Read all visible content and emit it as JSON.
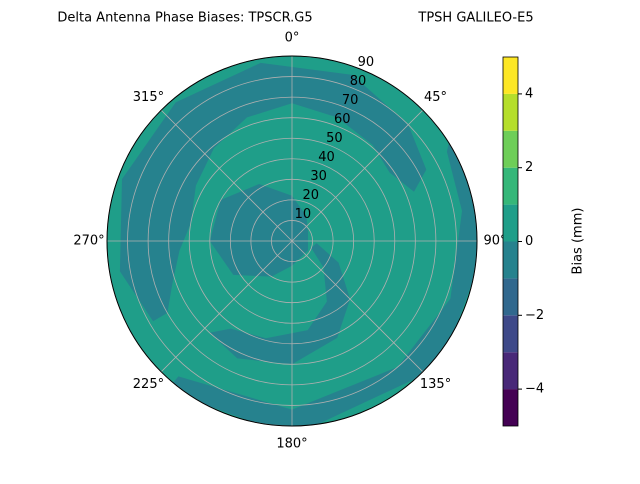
{
  "chart_data": {
    "type": "polar-contour",
    "title": "Delta Antenna Phase Biases: TPSCR.G5",
    "subtitle": "TPSH GALILEO-E5",
    "theta_ticks": [
      {
        "value": 0,
        "label": "0°"
      },
      {
        "value": 45,
        "label": "45°"
      },
      {
        "value": 90,
        "label": "90°"
      },
      {
        "value": 135,
        "label": "135°"
      },
      {
        "value": 180,
        "label": "180°"
      },
      {
        "value": 225,
        "label": "225°"
      },
      {
        "value": 270,
        "label": "270°"
      },
      {
        "value": 315,
        "label": "315°"
      }
    ],
    "rlim": [
      0,
      90
    ],
    "rticks": [
      10,
      20,
      30,
      40,
      50,
      60,
      70,
      80,
      90
    ],
    "grid": true,
    "levels": [
      -5,
      -4,
      -3,
      -2,
      -1,
      0,
      1,
      2,
      3,
      4,
      5
    ],
    "colors": [
      "#440154",
      "#482878",
      "#3e4989",
      "#31688e",
      "#26828e",
      "#1f9e89",
      "#35b779",
      "#6ece58",
      "#b5de2b",
      "#fde725"
    ],
    "colorbar_label": "Bias (mm)",
    "colorbar_ticks": [
      {
        "value": -4,
        "label": "−4"
      },
      {
        "value": -2,
        "label": "−2"
      },
      {
        "value": 0,
        "label": "0"
      },
      {
        "value": 2,
        "label": "2"
      },
      {
        "value": 4,
        "label": "4"
      }
    ]
  }
}
